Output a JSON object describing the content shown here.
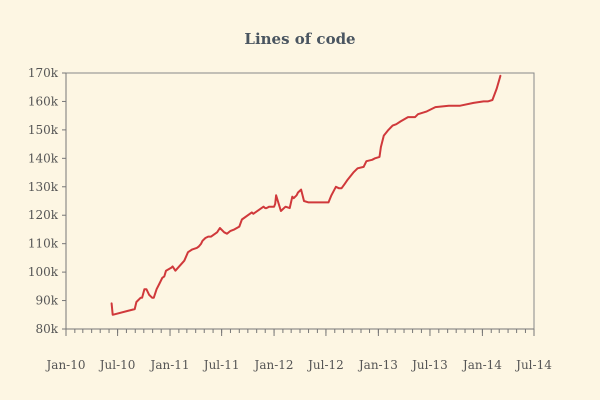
{
  "chart_data": {
    "type": "line",
    "title": "Lines of code",
    "xlabel": "",
    "ylabel": "",
    "xlim": [
      "2010-01-01",
      "2014-07-01"
    ],
    "ylim": [
      80000,
      170000
    ],
    "x_ticks": [
      "2010-01-01",
      "2010-07-01",
      "2011-01-01",
      "2011-07-01",
      "2012-01-01",
      "2012-07-01",
      "2013-01-01",
      "2013-07-01",
      "2014-01-01",
      "2014-07-01"
    ],
    "x_tick_labels": [
      "Jan-10",
      "Jul-10",
      "Jan-11",
      "Jul-11",
      "Jan-12",
      "Jul-12",
      "Jan-13",
      "Jul-13",
      "Jan-14",
      "Jul-14"
    ],
    "y_ticks": [
      80000,
      90000,
      100000,
      110000,
      120000,
      130000,
      140000,
      150000,
      160000,
      170000
    ],
    "y_tick_labels": [
      "80k",
      "90k",
      "100k",
      "110k",
      "120k",
      "130k",
      "140k",
      "150k",
      "160k",
      "170k"
    ],
    "grid": false,
    "line_color": "#d0393b",
    "series": [
      {
        "x": [
          "2010-06-10",
          "2010-06-14",
          "2010-08-30",
          "2010-09-05",
          "2010-09-20",
          "2010-09-25",
          "2010-10-03",
          "2010-10-10",
          "2010-10-20",
          "2010-10-30",
          "2010-11-05",
          "2010-11-15",
          "2010-11-25",
          "2010-12-05",
          "2010-12-12",
          "2010-12-18",
          "2011-01-05",
          "2011-01-10",
          "2011-01-20",
          "2011-02-20",
          "2011-03-05",
          "2011-03-20",
          "2011-04-05",
          "2011-04-12",
          "2011-04-20",
          "2011-04-25",
          "2011-05-05",
          "2011-05-15",
          "2011-05-25",
          "2011-06-15",
          "2011-06-25",
          "2011-07-10",
          "2011-07-20",
          "2011-08-01",
          "2011-08-15",
          "2011-09-01",
          "2011-09-10",
          "2011-10-15",
          "2011-10-20",
          "2011-11-25",
          "2011-12-01",
          "2011-12-05",
          "2011-12-15",
          "2012-01-01",
          "2012-01-05",
          "2012-01-08",
          "2012-01-25",
          "2012-02-10",
          "2012-02-25",
          "2012-03-05",
          "2012-03-10",
          "2012-03-15",
          "2012-03-20",
          "2012-03-25",
          "2012-04-05",
          "2012-04-15",
          "2012-05-01",
          "2012-05-20",
          "2012-06-10",
          "2012-07-10",
          "2012-07-20",
          "2012-08-05",
          "2012-08-15",
          "2012-08-25",
          "2012-09-05",
          "2012-09-15",
          "2012-10-05",
          "2012-10-20",
          "2012-11-10",
          "2012-11-20",
          "2012-12-10",
          "2012-12-20",
          "2013-01-05",
          "2013-01-10",
          "2013-01-20",
          "2013-02-05",
          "2013-02-20",
          "2013-03-05",
          "2013-03-20",
          "2013-04-15",
          "2013-05-10",
          "2013-05-20",
          "2013-06-20",
          "2013-07-20",
          "2013-09-05",
          "2013-10-10",
          "2013-10-15",
          "2013-12-01",
          "2014-01-05",
          "2014-01-12",
          "2014-01-20",
          "2014-02-05",
          "2014-02-20",
          "2014-03-05"
        ],
        "values": [
          89000,
          85000,
          87000,
          89500,
          91000,
          91000,
          94000,
          94000,
          92000,
          91000,
          91000,
          94000,
          96000,
          98000,
          98500,
          100500,
          101500,
          102000,
          100500,
          104000,
          107000,
          108000,
          108500,
          109000,
          110000,
          111000,
          112000,
          112500,
          112500,
          114000,
          115500,
          114000,
          113500,
          114500,
          115000,
          116000,
          118500,
          121000,
          120500,
          123000,
          122500,
          122500,
          123000,
          123000,
          124000,
          127000,
          121500,
          123000,
          122500,
          126500,
          126000,
          126500,
          127000,
          128000,
          129000,
          125000,
          124500,
          124500,
          124500,
          124500,
          127000,
          130000,
          129500,
          129500,
          131000,
          132500,
          135000,
          136500,
          137000,
          139000,
          139500,
          140000,
          140500,
          144000,
          148000,
          150000,
          151500,
          152000,
          153000,
          154500,
          154500,
          155500,
          156500,
          158000,
          158500,
          158500,
          158500,
          159500,
          160000,
          160000,
          160000,
          160500,
          164500,
          169000
        ]
      }
    ]
  }
}
